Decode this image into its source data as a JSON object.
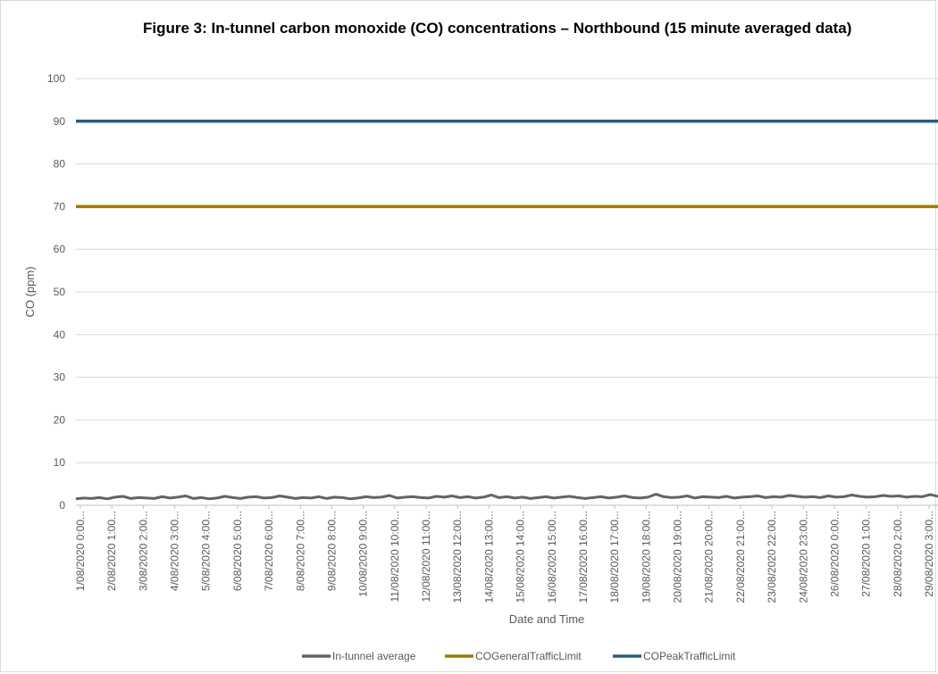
{
  "chart_data": {
    "type": "line",
    "title": "Figure 3: In-tunnel carbon monoxide (CO) concentrations – Northbound (15 minute averaged data)",
    "xlabel": "Date and Time",
    "ylabel": "CO (ppm)",
    "ylim": [
      0,
      100
    ],
    "yticks": [
      0,
      10,
      20,
      30,
      40,
      50,
      60,
      70,
      80,
      90,
      100
    ],
    "grid": true,
    "legend_position": "bottom",
    "x_tick_labels": [
      "1/08/2020 0:00...",
      "2/08/2020 1:00...",
      "3/08/2020 2:00...",
      "4/08/2020 3:00...",
      "5/08/2020 4:00...",
      "6/08/2020 5:00...",
      "7/08/2020 6:00...",
      "8/08/2020 7:00...",
      "9/08/2020 8:00...",
      "10/08/2020 9:00...",
      "11/08/2020 10:00...",
      "12/08/2020 11:00...",
      "13/08/2020 12:00...",
      "14/08/2020 13:00...",
      "15/08/2020 14:00...",
      "16/08/2020 15:00...",
      "17/08/2020 16:00...",
      "18/08/2020 17:00...",
      "19/08/2020 18:00...",
      "20/08/2020 19:00...",
      "21/08/2020 20:00...",
      "22/08/2020 21:00...",
      "23/08/2020 22:00...",
      "24/08/2020 23:00...",
      "26/08/2020 0:00...",
      "27/08/2020 1:00...",
      "28/08/2020 2:00...",
      "29/08/2020 3:00..."
    ],
    "series": [
      {
        "name": "In-tunnel average",
        "color": "#636363",
        "values": [
          1.5,
          1.7,
          1.6,
          1.8,
          1.5,
          1.9,
          2.1,
          1.6,
          1.8,
          1.7,
          1.6,
          2.0,
          1.7,
          1.9,
          2.2,
          1.6,
          1.8,
          1.5,
          1.7,
          2.1,
          1.8,
          1.6,
          1.9,
          2.0,
          1.7,
          1.8,
          2.2,
          1.9,
          1.6,
          1.8,
          1.7,
          2.0,
          1.6,
          1.9,
          1.8,
          1.5,
          1.7,
          2.0,
          1.8,
          1.9,
          2.3,
          1.7,
          1.9,
          2.0,
          1.8,
          1.7,
          2.1,
          1.9,
          2.2,
          1.8,
          2.0,
          1.7,
          1.9,
          2.4,
          1.8,
          2.0,
          1.7,
          1.9,
          1.6,
          1.8,
          2.0,
          1.7,
          1.9,
          2.1,
          1.8,
          1.6,
          1.8,
          2.0,
          1.7,
          1.9,
          2.2,
          1.8,
          1.7,
          1.9,
          2.6,
          2.0,
          1.8,
          1.9,
          2.2,
          1.7,
          2.0,
          1.9,
          1.8,
          2.1,
          1.7,
          1.9,
          2.0,
          2.2,
          1.8,
          2.0,
          1.9,
          2.3,
          2.1,
          1.9,
          2.0,
          1.8,
          2.2,
          1.9,
          2.0,
          2.4,
          2.1,
          1.9,
          2.0,
          2.3,
          2.1,
          2.2,
          1.9,
          2.1,
          2.0,
          2.5,
          2.1
        ]
      },
      {
        "name": "COGeneralTrafficLimit",
        "color": "#9c7a0a",
        "values": [
          70,
          70
        ]
      },
      {
        "name": "COPeakTrafficLimit",
        "color": "#255e82",
        "values": [
          90,
          90
        ]
      }
    ]
  }
}
